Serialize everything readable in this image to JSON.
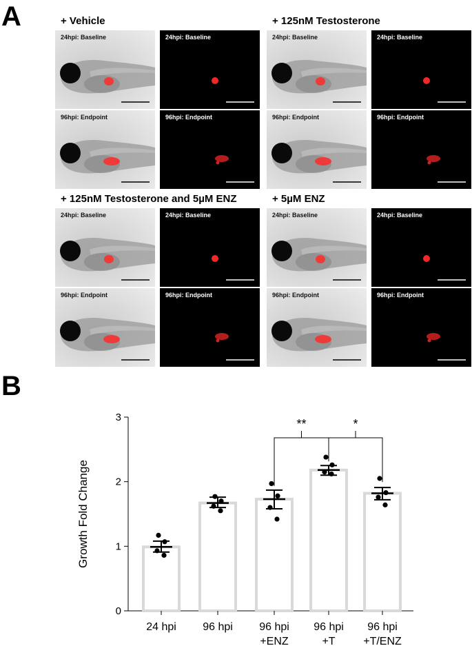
{
  "panel_a": {
    "letter": "A",
    "groups": [
      {
        "title": "+ Vehicle",
        "baseline_label": "24hpi: Baseline",
        "endpoint_label": "96hpi: Endpoint"
      },
      {
        "title": "+ 125nM Testosterone",
        "baseline_label": "24hpi: Baseline",
        "endpoint_label": "96hpi: Endpoint"
      },
      {
        "title": "+ 125nM Testosterone and 5µM ENZ",
        "baseline_label": "24hpi: Baseline",
        "endpoint_label": "96hpi: Endpoint"
      },
      {
        "title": "+ 5µM ENZ",
        "baseline_label": "24hpi: Baseline",
        "endpoint_label": "96hpi: Endpoint"
      }
    ],
    "colors": {
      "fluorescence": "#ff2a2a",
      "scale_bar_dark": "#000000",
      "scale_bar_light": "#ffffff"
    }
  },
  "panel_b": {
    "letter": "B"
  },
  "chart_data": {
    "type": "bar",
    "ylabel": "Growth Fold Change",
    "xlabel": "",
    "ylim": [
      0,
      3
    ],
    "yticks": [
      0,
      1,
      2,
      3
    ],
    "categories": [
      [
        "24 hpi"
      ],
      [
        "96 hpi"
      ],
      [
        "96 hpi",
        "+ENZ"
      ],
      [
        "96 hpi",
        "+T"
      ],
      [
        "96 hpi",
        "+T/ENZ"
      ]
    ],
    "values": [
      0.99,
      1.67,
      1.73,
      2.18,
      1.82
    ],
    "error_upper": [
      1.08,
      1.76,
      1.87,
      2.25,
      1.91
    ],
    "error_lower": [
      0.91,
      1.6,
      1.58,
      2.1,
      1.72
    ],
    "points": [
      [
        1.17,
        1.07,
        0.93,
        0.86
      ],
      [
        1.77,
        1.7,
        1.62,
        1.55
      ],
      [
        1.97,
        1.78,
        1.6,
        1.42
      ],
      [
        2.38,
        2.26,
        2.15,
        2.12
      ],
      [
        2.05,
        1.83,
        1.76,
        1.64
      ]
    ],
    "significance": [
      {
        "from": 2,
        "to": 3,
        "label": "**",
        "y": 2.68
      },
      {
        "from": 3,
        "to": 4,
        "label": "*",
        "y": 2.68
      }
    ],
    "bar_color": "#d9d9d9",
    "point_color": "#000000"
  }
}
